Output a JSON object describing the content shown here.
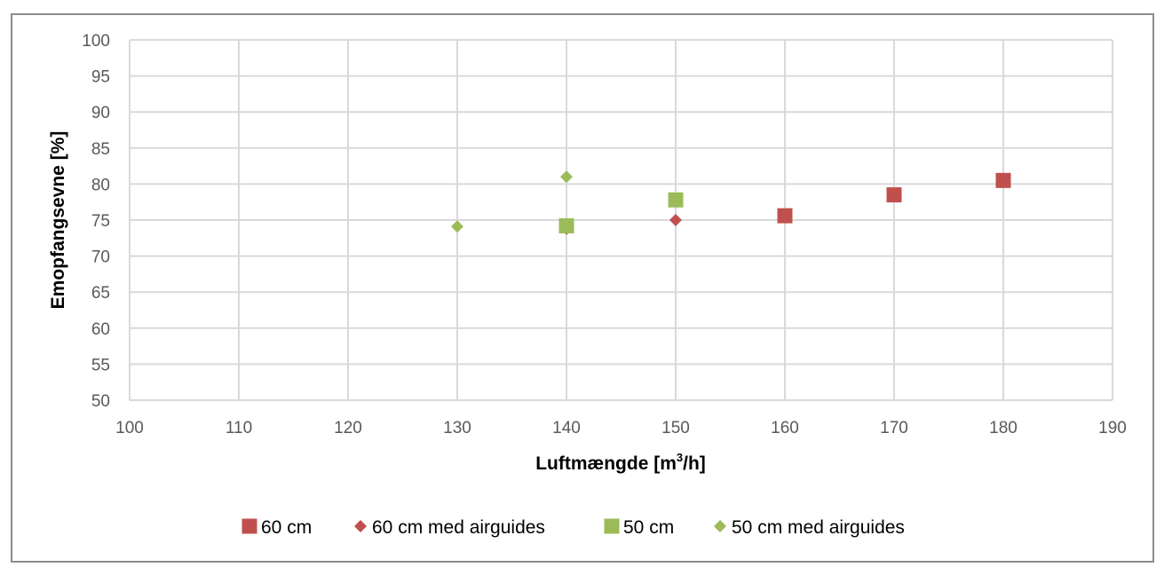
{
  "chart_data": {
    "type": "scatter",
    "title": "",
    "xlabel": "Luftmængde [m",
    "xlabel_sup": "3",
    "xlabel_tail": "/h]",
    "ylabel": "Emopfangsevne [%]",
    "xlim": [
      100,
      190
    ],
    "ylim": [
      50,
      100
    ],
    "x_ticks": [
      "100",
      "110",
      "120",
      "130",
      "140",
      "150",
      "160",
      "170",
      "180",
      "190"
    ],
    "y_ticks": [
      "50",
      "55",
      "60",
      "65",
      "70",
      "75",
      "80",
      "85",
      "90",
      "95",
      "100"
    ],
    "grid": true,
    "legend_position": "bottom",
    "series": [
      {
        "name": "60 cm",
        "marker": "square",
        "color": "#c0504d",
        "points": [
          [
            160,
            75.6
          ],
          [
            170,
            78.5
          ],
          [
            180,
            80.5
          ]
        ]
      },
      {
        "name": "60 cm med airguides",
        "marker": "diamond",
        "color": "#c0504d",
        "points": [
          [
            140,
            73.8
          ],
          [
            150,
            75.0
          ]
        ]
      },
      {
        "name": "50 cm",
        "marker": "square",
        "color": "#9bbb59",
        "points": [
          [
            140,
            74.2
          ],
          [
            150,
            77.8
          ]
        ]
      },
      {
        "name": "50 cm med airguides",
        "marker": "diamond",
        "color": "#9bbb59",
        "points": [
          [
            130,
            74.1
          ],
          [
            140,
            81.0
          ]
        ]
      }
    ]
  }
}
